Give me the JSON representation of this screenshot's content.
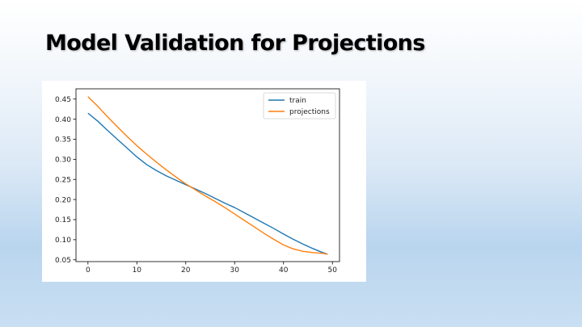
{
  "slide": {
    "title": "Model Validation for Projections"
  },
  "chart_data": {
    "type": "line",
    "title": "",
    "xlabel": "",
    "ylabel": "",
    "xlim": [
      -2.45,
      51.45
    ],
    "ylim": [
      0.0455,
      0.4755
    ],
    "x_ticks": [
      0,
      10,
      20,
      30,
      40,
      50
    ],
    "y_ticks": [
      0.05,
      0.1,
      0.15,
      0.2,
      0.25,
      0.3,
      0.35,
      0.4,
      0.45
    ],
    "grid": false,
    "legend_position": "top-right",
    "series": [
      {
        "name": "train",
        "color": "#1f77b4",
        "x": [
          0,
          2,
          4,
          6,
          8,
          10,
          12,
          14,
          16,
          18,
          20,
          22,
          24,
          26,
          28,
          30,
          32,
          34,
          36,
          38,
          40,
          42,
          44,
          46,
          48,
          49
        ],
        "y": [
          0.415,
          0.395,
          0.372,
          0.35,
          0.328,
          0.306,
          0.287,
          0.272,
          0.259,
          0.248,
          0.237,
          0.226,
          0.215,
          0.203,
          0.191,
          0.18,
          0.167,
          0.154,
          0.141,
          0.128,
          0.114,
          0.101,
          0.089,
          0.078,
          0.068,
          0.064
        ]
      },
      {
        "name": "projections",
        "color": "#ff7f0e",
        "x": [
          0,
          2,
          4,
          6,
          8,
          10,
          12,
          14,
          16,
          18,
          20,
          22,
          24,
          26,
          28,
          30,
          32,
          34,
          36,
          38,
          40,
          42,
          44,
          46,
          48,
          49
        ],
        "y": [
          0.456,
          0.432,
          0.406,
          0.381,
          0.357,
          0.334,
          0.313,
          0.293,
          0.274,
          0.256,
          0.239,
          0.224,
          0.209,
          0.195,
          0.18,
          0.164,
          0.148,
          0.132,
          0.116,
          0.101,
          0.087,
          0.077,
          0.071,
          0.068,
          0.066,
          0.064
        ]
      }
    ]
  }
}
